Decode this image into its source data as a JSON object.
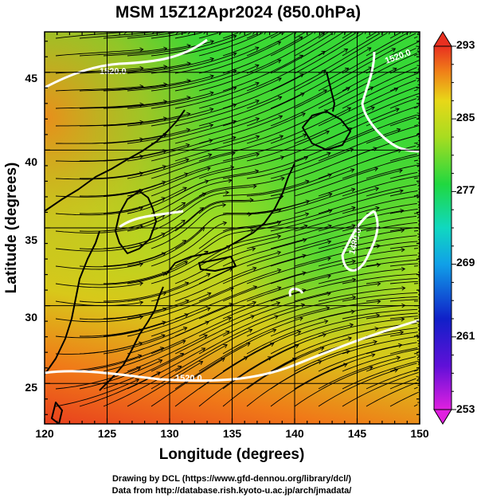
{
  "title": "MSM 15Z12Apr2024 (850.0hPa)",
  "xlabel": "Longitude (degrees)",
  "ylabel": "Latitude  (degrees)",
  "x_ticks": [
    "120",
    "125",
    "130",
    "135",
    "140",
    "145",
    "150"
  ],
  "y_ticks": [
    "25",
    "30",
    "35",
    "40",
    "45"
  ],
  "colorbar": {
    "ticks": [
      "293",
      "285",
      "277",
      "269",
      "261",
      "253"
    ],
    "min": 253,
    "max": 293
  },
  "contour_labels": [
    "1520.0",
    "1520.0",
    "1480.0",
    "1520.0"
  ],
  "credits": {
    "line1": "Drawing by DCL (https://www.gfd-dennou.org/library/dcl/)",
    "line2": "Data from http://database.rish.kyoto-u.ac.jp/arch/jmadata/"
  },
  "colors": {
    "warm": "#e8401e",
    "orange": "#f08a1a",
    "yellow_green": "#b8dc20",
    "green": "#28d83c",
    "cyan": "#16c8d8",
    "blue": "#1030d0",
    "magenta": "#e020e0"
  },
  "chart_data": {
    "type": "heatmap",
    "description_variable": "temperature (K) with streamlines and geopotential height contours",
    "xlim": [
      120,
      150
    ],
    "ylim": [
      22.4,
      47.6
    ],
    "zlim": [
      253,
      293
    ],
    "contour_levels": [
      1480.0,
      1520.0
    ],
    "grid": true
  }
}
